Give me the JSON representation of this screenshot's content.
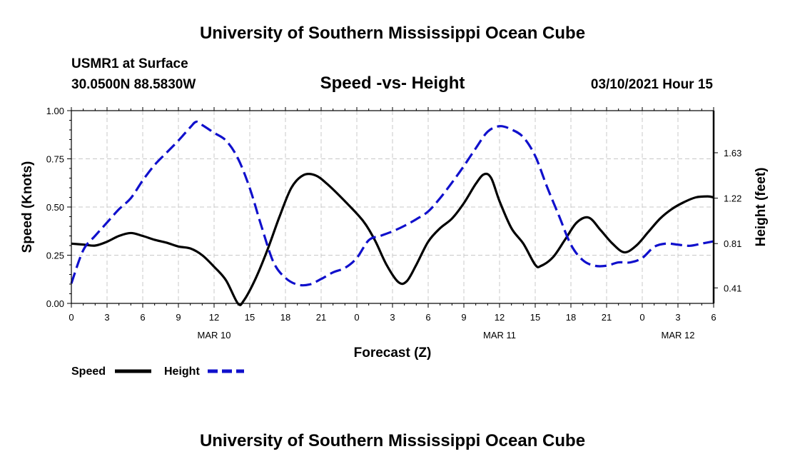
{
  "header": {
    "title_top": "University of Southern Mississippi Ocean Cube",
    "station": "USMR1 at Surface",
    "coords": "30.0500N 88.5830W",
    "chart_title": "Speed -vs- Height",
    "datetime": "03/10/2021 Hour 15",
    "title_bottom": "University of Southern Mississippi Ocean Cube"
  },
  "legend": {
    "speed_label": "Speed",
    "height_label": "Height",
    "speed_color": "#000000",
    "height_color": "#1010cc"
  },
  "chart_data": {
    "type": "line",
    "title": "Speed -vs- Height",
    "xlabel": "Forecast (Z)",
    "ylabel": "Speed (Knots)",
    "y2label": "Height (feet)",
    "x_hours_range": [
      0,
      54
    ],
    "ylim": [
      0,
      1.0
    ],
    "y2lim": [
      0.27,
      2.01
    ],
    "x_ticks": [
      {
        "h": 0,
        "label": "0"
      },
      {
        "h": 3,
        "label": "3"
      },
      {
        "h": 6,
        "label": "6"
      },
      {
        "h": 9,
        "label": "9"
      },
      {
        "h": 12,
        "label": "12"
      },
      {
        "h": 15,
        "label": "15"
      },
      {
        "h": 18,
        "label": "18"
      },
      {
        "h": 21,
        "label": "21"
      },
      {
        "h": 24,
        "label": "0"
      },
      {
        "h": 27,
        "label": "3"
      },
      {
        "h": 30,
        "label": "6"
      },
      {
        "h": 33,
        "label": "9"
      },
      {
        "h": 36,
        "label": "12"
      },
      {
        "h": 39,
        "label": "15"
      },
      {
        "h": 42,
        "label": "18"
      },
      {
        "h": 45,
        "label": "21"
      },
      {
        "h": 48,
        "label": "0"
      },
      {
        "h": 51,
        "label": "3"
      },
      {
        "h": 54,
        "label": "6"
      }
    ],
    "date_labels": [
      {
        "h": 12,
        "label": "MAR 10"
      },
      {
        "h": 36,
        "label": "MAR 11"
      },
      {
        "h": 51,
        "label": "MAR 12"
      }
    ],
    "y_ticks": [
      {
        "v": 0.0,
        "label": "0.00"
      },
      {
        "v": 0.25,
        "label": "0.25"
      },
      {
        "v": 0.5,
        "label": "0.50"
      },
      {
        "v": 0.75,
        "label": "0.75"
      },
      {
        "v": 1.0,
        "label": "1.00"
      }
    ],
    "y2_ticks": [
      {
        "v": 0.41,
        "label": "0.41"
      },
      {
        "v": 0.81,
        "label": "0.81"
      },
      {
        "v": 1.22,
        "label": "1.22"
      },
      {
        "v": 1.63,
        "label": "1.63"
      }
    ],
    "series": [
      {
        "name": "Speed",
        "axis": "left",
        "color": "#000000",
        "dashed": false,
        "points": [
          [
            0,
            0.31
          ],
          [
            1,
            0.305
          ],
          [
            2,
            0.3
          ],
          [
            3,
            0.32
          ],
          [
            4,
            0.35
          ],
          [
            5,
            0.365
          ],
          [
            6,
            0.35
          ],
          [
            7,
            0.33
          ],
          [
            8,
            0.315
          ],
          [
            9,
            0.295
          ],
          [
            10,
            0.285
          ],
          [
            11,
            0.25
          ],
          [
            12,
            0.19
          ],
          [
            13,
            0.12
          ],
          [
            14,
            0.0
          ],
          [
            14.5,
            0.015
          ],
          [
            15.5,
            0.13
          ],
          [
            16.5,
            0.28
          ],
          [
            17.5,
            0.45
          ],
          [
            18.5,
            0.6
          ],
          [
            19.5,
            0.665
          ],
          [
            20.5,
            0.665
          ],
          [
            21.5,
            0.62
          ],
          [
            23,
            0.53
          ],
          [
            24.5,
            0.43
          ],
          [
            25.5,
            0.33
          ],
          [
            26.5,
            0.2
          ],
          [
            27.5,
            0.11
          ],
          [
            28.2,
            0.115
          ],
          [
            29,
            0.2
          ],
          [
            30,
            0.32
          ],
          [
            31,
            0.39
          ],
          [
            32,
            0.44
          ],
          [
            33,
            0.52
          ],
          [
            34,
            0.62
          ],
          [
            34.7,
            0.67
          ],
          [
            35.3,
            0.65
          ],
          [
            36,
            0.53
          ],
          [
            37,
            0.39
          ],
          [
            38,
            0.31
          ],
          [
            39,
            0.2
          ],
          [
            39.5,
            0.195
          ],
          [
            40.5,
            0.24
          ],
          [
            41.5,
            0.33
          ],
          [
            42.5,
            0.42
          ],
          [
            43.5,
            0.445
          ],
          [
            44.5,
            0.38
          ],
          [
            45.5,
            0.31
          ],
          [
            46.5,
            0.265
          ],
          [
            47.5,
            0.3
          ],
          [
            48.5,
            0.37
          ],
          [
            49.5,
            0.44
          ],
          [
            50.5,
            0.49
          ],
          [
            51.5,
            0.525
          ],
          [
            52.5,
            0.55
          ],
          [
            53.5,
            0.555
          ],
          [
            54,
            0.55
          ]
        ]
      },
      {
        "name": "Height",
        "axis": "right",
        "color": "#1010cc",
        "dashed": true,
        "points": [
          [
            0,
            0.45
          ],
          [
            1,
            0.75
          ],
          [
            2,
            0.88
          ],
          [
            3,
            1.0
          ],
          [
            4,
            1.12
          ],
          [
            5,
            1.22
          ],
          [
            6,
            1.38
          ],
          [
            7,
            1.52
          ],
          [
            8,
            1.63
          ],
          [
            9,
            1.74
          ],
          [
            10,
            1.86
          ],
          [
            10.5,
            1.91
          ],
          [
            11,
            1.88
          ],
          [
            12,
            1.81
          ],
          [
            13,
            1.74
          ],
          [
            14,
            1.58
          ],
          [
            15,
            1.31
          ],
          [
            16,
            0.96
          ],
          [
            17,
            0.64
          ],
          [
            18,
            0.5
          ],
          [
            19,
            0.44
          ],
          [
            20,
            0.44
          ],
          [
            21,
            0.49
          ],
          [
            22,
            0.55
          ],
          [
            23,
            0.59
          ],
          [
            24,
            0.68
          ],
          [
            25,
            0.84
          ],
          [
            26,
            0.88
          ],
          [
            27,
            0.92
          ],
          [
            28,
            0.97
          ],
          [
            29,
            1.03
          ],
          [
            30,
            1.1
          ],
          [
            31,
            1.22
          ],
          [
            32,
            1.36
          ],
          [
            33,
            1.51
          ],
          [
            34,
            1.67
          ],
          [
            35,
            1.82
          ],
          [
            36,
            1.87
          ],
          [
            37,
            1.84
          ],
          [
            38,
            1.77
          ],
          [
            39,
            1.6
          ],
          [
            40,
            1.32
          ],
          [
            41,
            1.06
          ],
          [
            42,
            0.8
          ],
          [
            43,
            0.66
          ],
          [
            44,
            0.61
          ],
          [
            45,
            0.61
          ],
          [
            46,
            0.64
          ],
          [
            47,
            0.64
          ],
          [
            48,
            0.68
          ],
          [
            49,
            0.78
          ],
          [
            50,
            0.81
          ],
          [
            51,
            0.8
          ],
          [
            52,
            0.79
          ],
          [
            53,
            0.81
          ],
          [
            54,
            0.83
          ]
        ]
      }
    ]
  }
}
